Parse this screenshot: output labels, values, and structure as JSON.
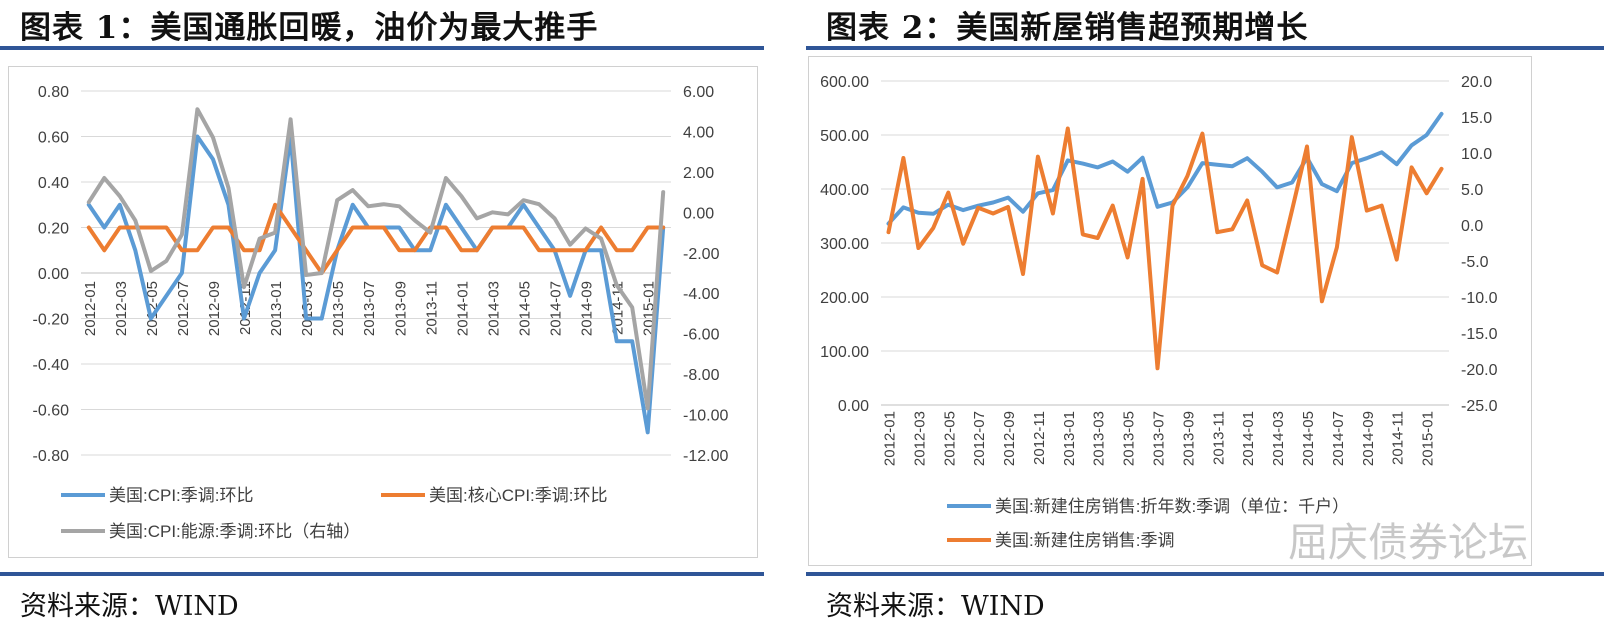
{
  "panel1": {
    "title": "图表 1：美国通胀回暖，油价为最大推手",
    "source": "资料来源：WIND"
  },
  "panel2": {
    "title": "图表 2：美国新屋销售超预期增长",
    "source": "资料来源：WIND"
  },
  "watermark": "屈庆债券论坛",
  "colors": {
    "blue": "#5b9bd5",
    "orange": "#ed7d31",
    "gray": "#a5a5a5",
    "rule": "#2f5597"
  },
  "chart_data": [
    {
      "type": "line",
      "title": "",
      "x": [
        "2012-01",
        "2012-02",
        "2012-03",
        "2012-04",
        "2012-05",
        "2012-06",
        "2012-07",
        "2012-08",
        "2012-09",
        "2012-10",
        "2012-11",
        "2012-12",
        "2013-01",
        "2013-02",
        "2013-03",
        "2013-04",
        "2013-05",
        "2013-06",
        "2013-07",
        "2013-08",
        "2013-09",
        "2013-10",
        "2013-11",
        "2013-12",
        "2014-01",
        "2014-02",
        "2014-03",
        "2014-04",
        "2014-05",
        "2014-06",
        "2014-07",
        "2014-08",
        "2014-09",
        "2014-10",
        "2014-11",
        "2014-12",
        "2015-01",
        "2015-02"
      ],
      "xticks": [
        "2012-01",
        "2012-03",
        "2012-05",
        "2012-07",
        "2012-09",
        "2012-11",
        "2013-01",
        "2013-03",
        "2013-05",
        "2013-07",
        "2013-09",
        "2013-11",
        "2014-01",
        "2014-03",
        "2014-05",
        "2014-07",
        "2014-09",
        "2014-11",
        "2015-01"
      ],
      "yticks_left": [
        "0.80",
        "0.60",
        "0.40",
        "0.20",
        "0.00",
        "-0.20",
        "-0.40",
        "-0.60",
        "-0.80"
      ],
      "yticks_right": [
        "6.00",
        "4.00",
        "2.00",
        "0.00",
        "-2.00",
        "-4.00",
        "-6.00",
        "-8.00",
        "-10.00",
        "-12.00"
      ],
      "ylim_left": [
        -0.8,
        0.8
      ],
      "ylim_right": [
        -12,
        6
      ],
      "grid": true,
      "legend_position": "bottom",
      "series": [
        {
          "name": "美国:CPI:季调:环比",
          "axis": "left",
          "color": "#5b9bd5",
          "values": [
            0.3,
            0.2,
            0.3,
            0.1,
            -0.2,
            -0.1,
            0.0,
            0.6,
            0.5,
            0.3,
            -0.2,
            0.0,
            0.1,
            0.6,
            -0.2,
            -0.2,
            0.1,
            0.3,
            0.2,
            0.2,
            0.2,
            0.1,
            0.1,
            0.3,
            0.2,
            0.1,
            0.2,
            0.2,
            0.3,
            0.2,
            0.1,
            -0.1,
            0.1,
            0.1,
            -0.3,
            -0.3,
            -0.7,
            0.2
          ]
        },
        {
          "name": "美国:核心CPI:季调:环比",
          "axis": "left",
          "color": "#ed7d31",
          "values": [
            0.2,
            0.1,
            0.2,
            0.2,
            0.2,
            0.2,
            0.1,
            0.1,
            0.2,
            0.2,
            0.1,
            0.1,
            0.3,
            0.2,
            0.1,
            0.0,
            0.1,
            0.2,
            0.2,
            0.2,
            0.1,
            0.1,
            0.2,
            0.2,
            0.1,
            0.1,
            0.2,
            0.2,
            0.2,
            0.1,
            0.1,
            0.1,
            0.1,
            0.2,
            0.1,
            0.1,
            0.2,
            0.2
          ]
        },
        {
          "name": "美国:CPI:能源:季调:环比（右轴）",
          "axis": "right",
          "color": "#a5a5a5",
          "values": [
            0.5,
            1.7,
            0.8,
            -0.4,
            -2.9,
            -2.4,
            -1.1,
            5.1,
            3.7,
            1.2,
            -3.7,
            -1.3,
            -1.0,
            4.6,
            -3.1,
            -3.0,
            0.6,
            1.1,
            0.3,
            0.4,
            0.3,
            -0.4,
            -1.0,
            1.7,
            0.8,
            -0.3,
            0.0,
            -0.1,
            0.6,
            0.4,
            -0.3,
            -1.6,
            -0.8,
            -1.3,
            -3.6,
            -4.7,
            -9.7,
            1.0
          ]
        }
      ]
    },
    {
      "type": "line",
      "title": "",
      "x": [
        "2012-01",
        "2012-02",
        "2012-03",
        "2012-04",
        "2012-05",
        "2012-06",
        "2012-07",
        "2012-08",
        "2012-09",
        "2012-10",
        "2012-11",
        "2012-12",
        "2013-01",
        "2013-02",
        "2013-03",
        "2013-04",
        "2013-05",
        "2013-06",
        "2013-07",
        "2013-08",
        "2013-09",
        "2013-10",
        "2013-11",
        "2013-12",
        "2014-01",
        "2014-02",
        "2014-03",
        "2014-04",
        "2014-05",
        "2014-06",
        "2014-07",
        "2014-08",
        "2014-09",
        "2014-10",
        "2014-11",
        "2014-12",
        "2015-01",
        "2015-02"
      ],
      "xticks": [
        "2012-01",
        "2012-03",
        "2012-05",
        "2012-07",
        "2012-09",
        "2012-11",
        "2013-01",
        "2013-03",
        "2013-05",
        "2013-07",
        "2013-09",
        "2013-11",
        "2014-01",
        "2014-03",
        "2014-05",
        "2014-07",
        "2014-09",
        "2014-11",
        "2015-01"
      ],
      "yticks_left": [
        "600.00",
        "500.00",
        "400.00",
        "300.00",
        "200.00",
        "100.00",
        "0.00"
      ],
      "yticks_right": [
        "20.0",
        "15.0",
        "10.0",
        "5.0",
        "0.0",
        "-5.0",
        "-10.0",
        "-15.0",
        "-20.0",
        "-25.0"
      ],
      "ylim_left": [
        0,
        600
      ],
      "ylim_right": [
        -25,
        20
      ],
      "grid": true,
      "legend_position": "bottom",
      "series": [
        {
          "name": "美国:新建住房销售:折年数:季调（单位：千户）",
          "axis": "left",
          "color": "#5b9bd5",
          "values": [
            336,
            366,
            356,
            354,
            371,
            361,
            369,
            375,
            384,
            358,
            392,
            398,
            453,
            447,
            440,
            451,
            432,
            458,
            367,
            375,
            403,
            448,
            445,
            442,
            457,
            432,
            403,
            412,
            458,
            409,
            396,
            448,
            457,
            468,
            446,
            481,
            500,
            539
          ]
        },
        {
          "name": "美国:新建住房销售:季调",
          "axis": "right",
          "color": "#ed7d31",
          "values": [
            -1.0,
            9.3,
            -3.2,
            -0.4,
            4.5,
            -2.6,
            2.4,
            1.6,
            2.5,
            -6.8,
            9.5,
            1.6,
            13.4,
            -1.3,
            -1.8,
            2.7,
            -4.5,
            6.4,
            -19.9,
            2.7,
            6.8,
            12.7,
            -1.0,
            -0.6,
            3.4,
            -5.6,
            -6.6,
            2.1,
            10.9,
            -10.6,
            -3.1,
            12.2,
            2.0,
            2.7,
            -4.8,
            8.0,
            4.4,
            7.8
          ]
        }
      ]
    }
  ]
}
